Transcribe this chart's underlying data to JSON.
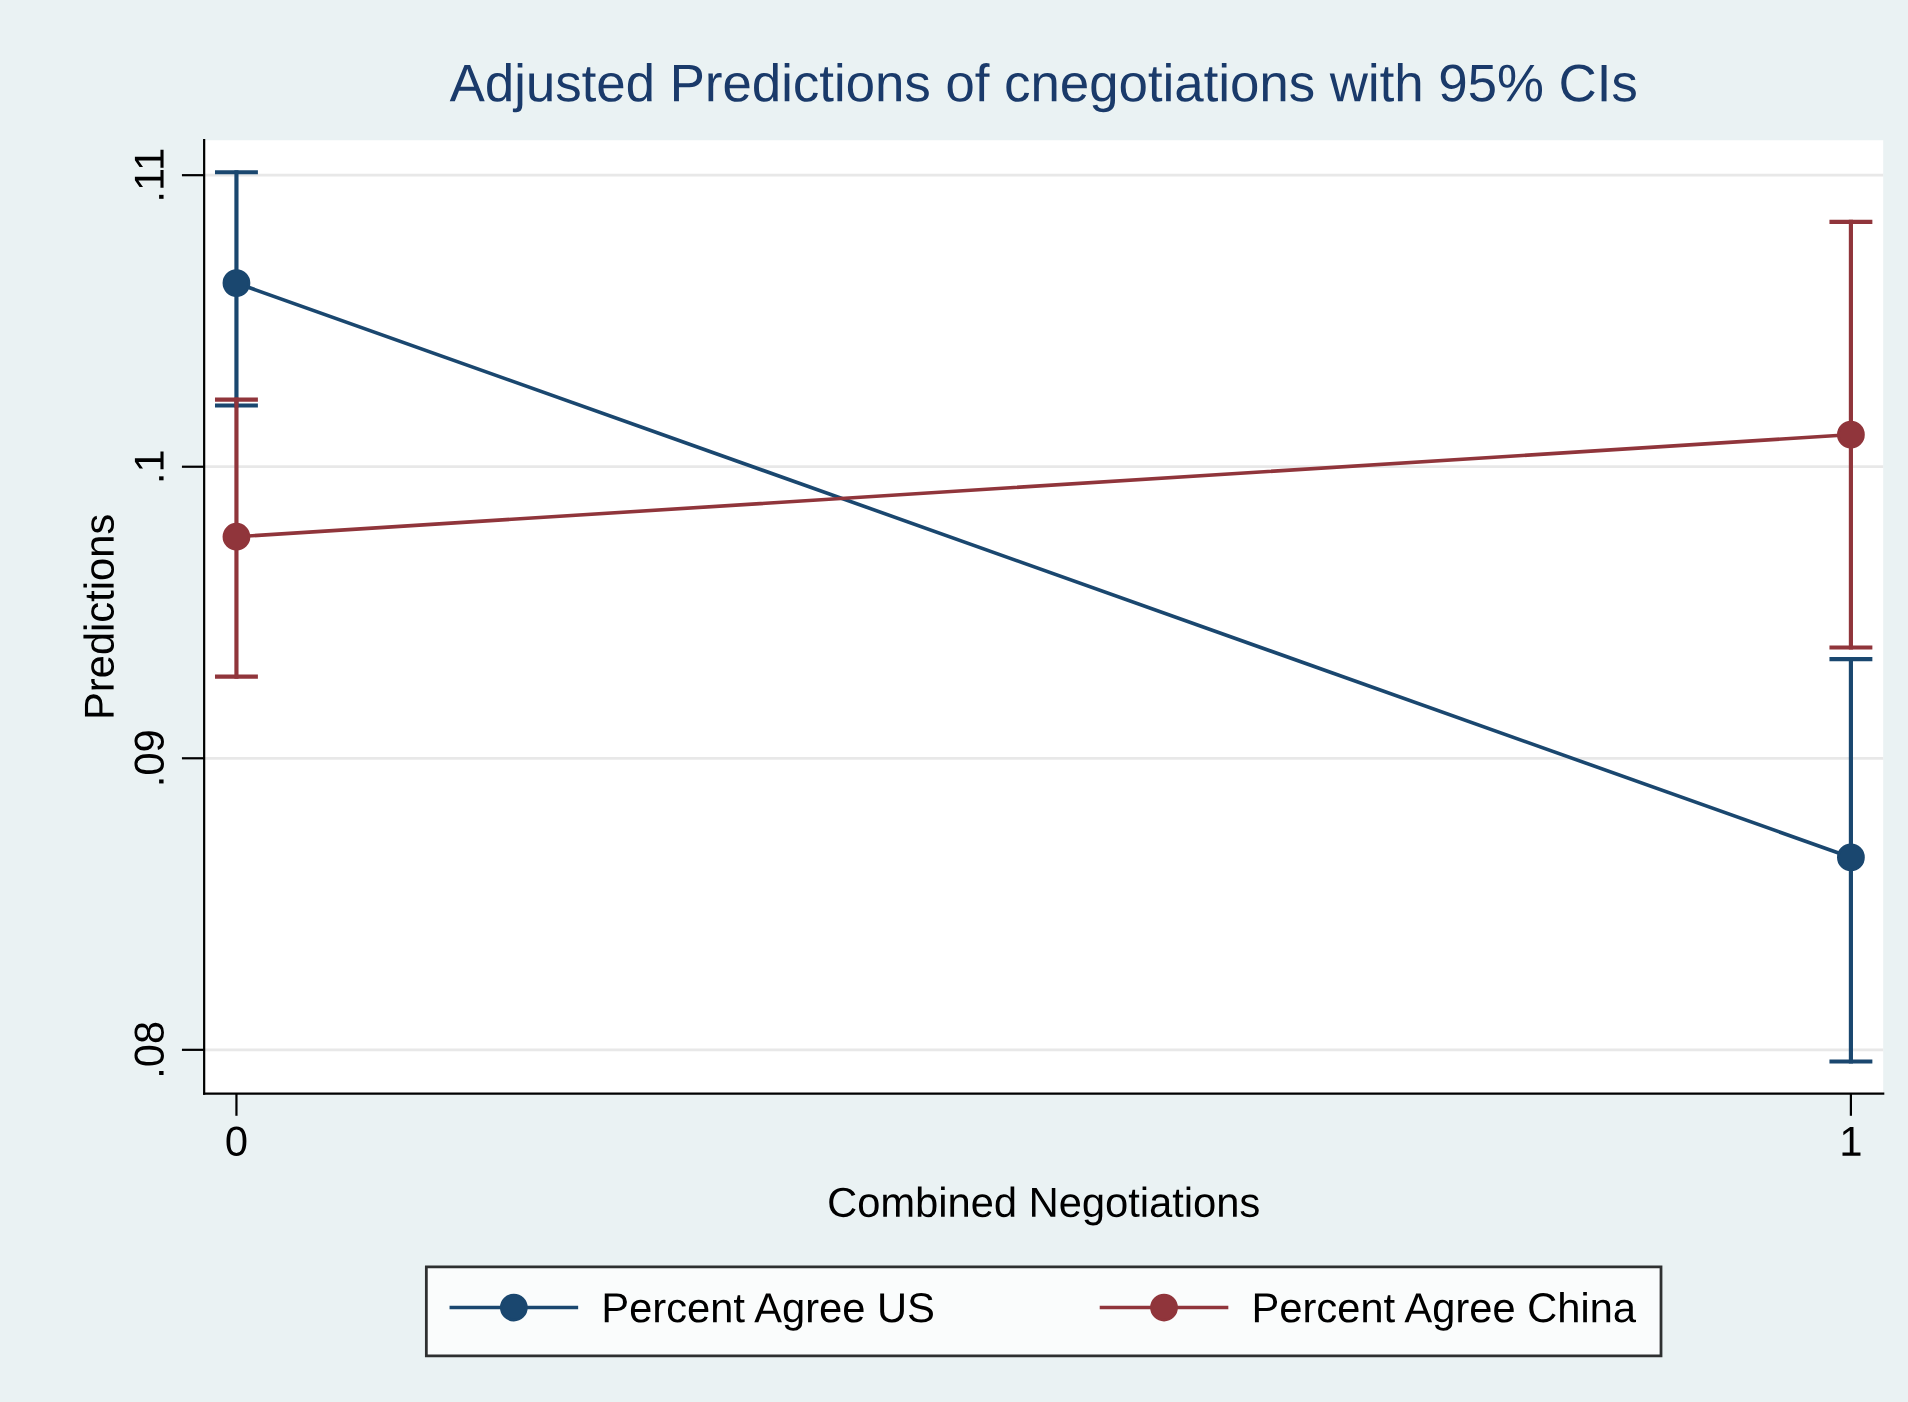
{
  "chart_data": {
    "type": "line",
    "title": "Adjusted Predictions of cnegotiations with 95% CIs",
    "xlabel": "Combined Negotiations",
    "ylabel": "Predictions",
    "x": [
      0,
      1
    ],
    "series": [
      {
        "name": "Percent Agree US",
        "color": "#1a476f",
        "values": [
          0.1063,
          0.0866
        ],
        "errors": [
          [
            0.1021,
            0.1101
          ],
          [
            0.0796,
            0.0934
          ]
        ]
      },
      {
        "name": "Percent Agree China",
        "color": "#90353b",
        "values": [
          0.0976,
          0.1011
        ],
        "errors": [
          [
            0.0928,
            0.1023
          ],
          [
            0.0938,
            0.1084
          ]
        ]
      }
    ],
    "xlim": [
      -0.02,
      1.02
    ],
    "xticks": [
      0,
      1
    ],
    "ylim": [
      0.0785,
      0.1112
    ],
    "yticks": [
      {
        "value": 0.08,
        "label": ".08"
      },
      {
        "value": 0.09,
        "label": ".09"
      },
      {
        "value": 0.1,
        "label": ".1"
      },
      {
        "value": 0.11,
        "label": ".11"
      }
    ],
    "grid": "y",
    "legend": "bottom",
    "marker": "circle",
    "line_style": "solid"
  }
}
